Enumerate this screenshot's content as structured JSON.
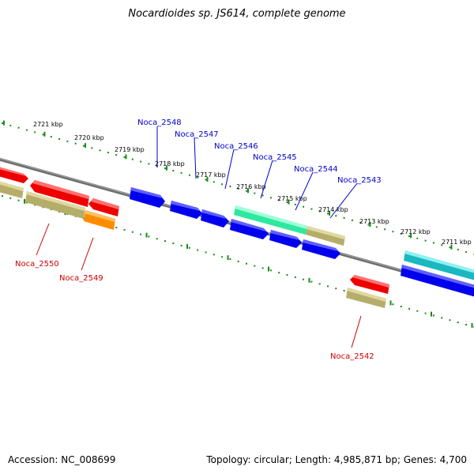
{
  "title": "Nocardioides sp. JS614, complete genome",
  "footer": {
    "accession": "Accession: NC_008699",
    "topology": "Topology: circular; Length: 4,985,871 bp; Genes: 4,700"
  },
  "colors": {
    "backbone": "#808080",
    "ticks": "#1a8a1a",
    "forward_label": "#0000cc",
    "reverse_label": "#cc0000",
    "cds_blue": "#0000ee",
    "cds_red": "#ee0000",
    "cds_khaki": "#b5ad6a",
    "cds_orange": "#ff8c00",
    "cds_green": "#2ee8a0",
    "cds_teal": "#1ab8c0"
  },
  "scale_labels": [
    "2721 kbp",
    "2720 kbp",
    "2719 kbp",
    "2718 kbp",
    "2717 kbp",
    "2716 kbp",
    "2715 kbp",
    "2714 kbp",
    "2713 kbp",
    "2712 kbp",
    "2711 kbp"
  ],
  "gene_labels": {
    "forward": [
      "Noca_2548",
      "Noca_2547",
      "Noca_2546",
      "Noca_2545",
      "Noca_2544",
      "Noca_2543"
    ],
    "reverse": [
      "Noca_2550",
      "Noca_2549",
      "Noca_2542"
    ]
  }
}
